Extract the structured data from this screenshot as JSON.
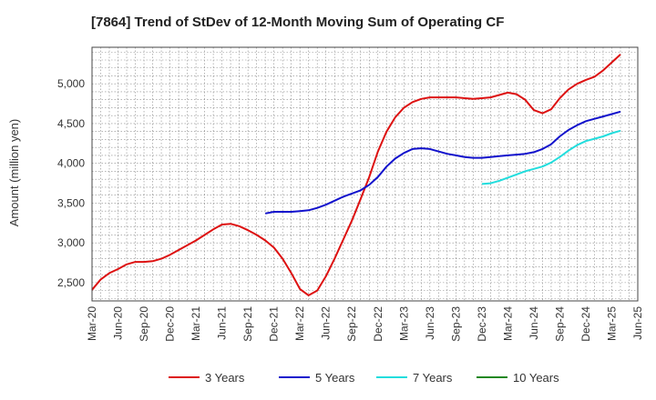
{
  "chart_data": {
    "type": "line",
    "title": "[7864]  Trend of StDev of 12-Month Moving Sum of Operating CF",
    "xlabel": "",
    "ylabel": "Amount (million yen)",
    "x_ticks": [
      "Mar-20",
      "Jun-20",
      "Sep-20",
      "Dec-20",
      "Mar-21",
      "Jun-21",
      "Sep-21",
      "Dec-21",
      "Mar-22",
      "Jun-22",
      "Sep-22",
      "Dec-22",
      "Mar-23",
      "Jun-23",
      "Sep-23",
      "Dec-23",
      "Mar-24",
      "Jun-24",
      "Sep-24",
      "Dec-24",
      "Mar-25",
      "Jun-25"
    ],
    "y_ticks": [
      2500,
      3000,
      3500,
      4000,
      4500,
      5000
    ],
    "y_tick_labels": [
      "2,500",
      "3,000",
      "3,500",
      "4,000",
      "4,500",
      "5,000"
    ],
    "ylim": [
      2270,
      5460
    ],
    "grid": true,
    "legend_position": "bottom",
    "series": [
      {
        "name": "3 Years",
        "color": "#dd1111",
        "values": [
          [
            "2020-03",
            2410
          ],
          [
            "2020-04",
            2540
          ],
          [
            "2020-05",
            2620
          ],
          [
            "2020-06",
            2670
          ],
          [
            "2020-07",
            2730
          ],
          [
            "2020-08",
            2760
          ],
          [
            "2020-09",
            2760
          ],
          [
            "2020-10",
            2770
          ],
          [
            "2020-11",
            2800
          ],
          [
            "2020-12",
            2850
          ],
          [
            "2021-01",
            2910
          ],
          [
            "2021-02",
            2970
          ],
          [
            "2021-03",
            3030
          ],
          [
            "2021-04",
            3100
          ],
          [
            "2021-05",
            3170
          ],
          [
            "2021-06",
            3230
          ],
          [
            "2021-07",
            3240
          ],
          [
            "2021-08",
            3210
          ],
          [
            "2021-09",
            3160
          ],
          [
            "2021-10",
            3100
          ],
          [
            "2021-11",
            3030
          ],
          [
            "2021-12",
            2940
          ],
          [
            "2021-13",
            2800
          ],
          [
            "2022-02",
            2620
          ],
          [
            "2022-03",
            2420
          ],
          [
            "2022-04",
            2340
          ],
          [
            "2022-05",
            2400
          ],
          [
            "2022-06",
            2580
          ],
          [
            "2022-07",
            2800
          ],
          [
            "2022-08",
            3040
          ],
          [
            "2022-09",
            3280
          ],
          [
            "2022-10",
            3550
          ],
          [
            "2022-11",
            3830
          ],
          [
            "2022-12",
            4150
          ],
          [
            "2023-01",
            4400
          ],
          [
            "2023-02",
            4580
          ],
          [
            "2023-03",
            4700
          ],
          [
            "2023-04",
            4770
          ],
          [
            "2023-05",
            4810
          ],
          [
            "2023-06",
            4830
          ],
          [
            "2023-07",
            4830
          ],
          [
            "2023-08",
            4830
          ],
          [
            "2023-09",
            4830
          ],
          [
            "2023-10",
            4820
          ],
          [
            "2023-11",
            4810
          ],
          [
            "2023-12",
            4820
          ],
          [
            "2024-01",
            4830
          ],
          [
            "2024-02",
            4860
          ],
          [
            "2024-03",
            4890
          ],
          [
            "2024-04",
            4870
          ],
          [
            "2024-05",
            4800
          ],
          [
            "2024-06",
            4670
          ],
          [
            "2024-07",
            4630
          ],
          [
            "2024-08",
            4680
          ],
          [
            "2024-09",
            4820
          ],
          [
            "2024-10",
            4930
          ],
          [
            "2024-11",
            5000
          ],
          [
            "2024-12",
            5050
          ],
          [
            "2025-01",
            5090
          ],
          [
            "2025-02",
            5170
          ],
          [
            "2025-03",
            5270
          ],
          [
            "2025-04",
            5370
          ]
        ]
      },
      {
        "name": "5 Years",
        "color": "#1111cc",
        "values": [
          [
            "2021-11",
            3370
          ],
          [
            "2021-12",
            3390
          ],
          [
            "2022-01",
            3390
          ],
          [
            "2022-02",
            3390
          ],
          [
            "2022-03",
            3400
          ],
          [
            "2022-04",
            3410
          ],
          [
            "2022-05",
            3440
          ],
          [
            "2022-06",
            3480
          ],
          [
            "2022-07",
            3530
          ],
          [
            "2022-08",
            3580
          ],
          [
            "2022-09",
            3620
          ],
          [
            "2022-10",
            3660
          ],
          [
            "2022-11",
            3730
          ],
          [
            "2022-12",
            3830
          ],
          [
            "2023-01",
            3960
          ],
          [
            "2023-02",
            4060
          ],
          [
            "2023-03",
            4130
          ],
          [
            "2023-04",
            4180
          ],
          [
            "2023-05",
            4190
          ],
          [
            "2023-06",
            4180
          ],
          [
            "2023-07",
            4150
          ],
          [
            "2023-08",
            4120
          ],
          [
            "2023-09",
            4100
          ],
          [
            "2023-10",
            4080
          ],
          [
            "2023-11",
            4070
          ],
          [
            "2023-12",
            4070
          ],
          [
            "2024-01",
            4080
          ],
          [
            "2024-02",
            4090
          ],
          [
            "2024-03",
            4100
          ],
          [
            "2024-04",
            4110
          ],
          [
            "2024-05",
            4120
          ],
          [
            "2024-06",
            4140
          ],
          [
            "2024-07",
            4180
          ],
          [
            "2024-08",
            4240
          ],
          [
            "2024-09",
            4340
          ],
          [
            "2024-10",
            4420
          ],
          [
            "2024-11",
            4480
          ],
          [
            "2024-12",
            4530
          ],
          [
            "2025-01",
            4560
          ],
          [
            "2025-02",
            4590
          ],
          [
            "2025-03",
            4620
          ],
          [
            "2025-04",
            4650
          ]
        ]
      },
      {
        "name": "7 Years",
        "color": "#22dddd",
        "values": [
          [
            "2023-12",
            3740
          ],
          [
            "2024-01",
            3750
          ],
          [
            "2024-02",
            3780
          ],
          [
            "2024-03",
            3820
          ],
          [
            "2024-04",
            3860
          ],
          [
            "2024-05",
            3900
          ],
          [
            "2024-06",
            3930
          ],
          [
            "2024-07",
            3960
          ],
          [
            "2024-08",
            4010
          ],
          [
            "2024-09",
            4080
          ],
          [
            "2024-10",
            4160
          ],
          [
            "2024-11",
            4230
          ],
          [
            "2024-12",
            4280
          ],
          [
            "2025-01",
            4310
          ],
          [
            "2025-02",
            4340
          ],
          [
            "2025-03",
            4380
          ],
          [
            "2025-04",
            4410
          ]
        ]
      },
      {
        "name": "10 Years",
        "color": "#228822",
        "values": []
      }
    ]
  }
}
